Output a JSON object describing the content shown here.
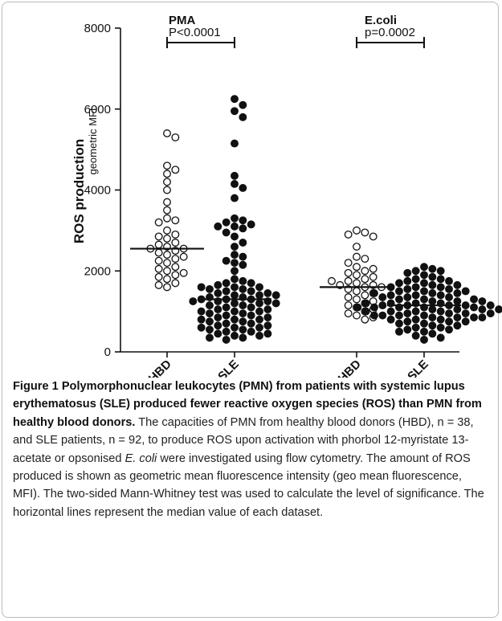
{
  "chart_data": {
    "type": "dot",
    "ylabel": "ROS production",
    "ylabel_sub": "geometric MFI",
    "categories": [
      "HBD",
      "SLE",
      "HBD",
      "SLE"
    ],
    "markers": [
      "open",
      "filled",
      "open",
      "filled"
    ],
    "values": [
      [
        5400,
        5300,
        4600,
        4500,
        4400,
        4200,
        4000,
        3700,
        3500,
        3300,
        3250,
        3200,
        3000,
        2900,
        2850,
        2800,
        2700,
        2650,
        2600,
        2550,
        2550,
        2500,
        2450,
        2400,
        2350,
        2300,
        2250,
        2200,
        2100,
        2050,
        2000,
        1950,
        1900,
        1850,
        1800,
        1700,
        1650,
        1600
      ],
      [
        6250,
        6100,
        5950,
        5800,
        5150,
        4350,
        4150,
        4050,
        3800,
        3300,
        3250,
        3200,
        3150,
        3100,
        3100,
        3050,
        2950,
        2850,
        2700,
        2600,
        2400,
        2350,
        2250,
        2200,
        2150,
        2000,
        1800,
        1750,
        1700,
        1700,
        1650,
        1600,
        1600,
        1550,
        1550,
        1500,
        1500,
        1450,
        1450,
        1400,
        1400,
        1350,
        1350,
        1300,
        1300,
        1300,
        1250,
        1250,
        1200,
        1200,
        1150,
        1150,
        1100,
        1100,
        1050,
        1050,
        1000,
        1000,
        950,
        950,
        900,
        900,
        850,
        850,
        800,
        800,
        750,
        750,
        700,
        700,
        650,
        650,
        600,
        600,
        550,
        550,
        500,
        500,
        450,
        450,
        400,
        400,
        350,
        350,
        300,
        1400,
        1200,
        1000,
        800,
        600,
        1600,
        1250
      ],
      [
        3000,
        2950,
        2900,
        2850,
        2600,
        2350,
        2300,
        2200,
        2100,
        2000,
        1950,
        1900,
        1850,
        1800,
        1750,
        1700,
        1650,
        1650,
        1600,
        1600,
        1550,
        1500,
        1450,
        1400,
        1350,
        1300,
        1250,
        1200,
        1150,
        1100,
        1050,
        1000,
        950,
        900,
        850,
        800,
        2050,
        1750
      ],
      [
        2100,
        2050,
        2000,
        2000,
        1950,
        1900,
        1850,
        1800,
        1800,
        1750,
        1750,
        1700,
        1700,
        1650,
        1650,
        1600,
        1600,
        1550,
        1550,
        1500,
        1500,
        1450,
        1450,
        1400,
        1400,
        1350,
        1350,
        1300,
        1300,
        1250,
        1250,
        1200,
        1200,
        1200,
        1150,
        1150,
        1150,
        1150,
        1100,
        1100,
        1100,
        1100,
        1050,
        1050,
        1050,
        1000,
        1000,
        1000,
        950,
        950,
        950,
        900,
        900,
        900,
        850,
        850,
        850,
        800,
        800,
        800,
        750,
        750,
        700,
        700,
        650,
        650,
        600,
        600,
        550,
        550,
        500,
        500,
        450,
        400,
        350,
        1200,
        1150,
        1100,
        1000,
        900,
        1300,
        1400,
        1250,
        1050,
        950,
        850,
        750,
        1500,
        1600,
        1350,
        1450,
        300
      ]
    ],
    "medians": [
      2550,
      1300,
      1600,
      1150
    ],
    "annotations": [
      {
        "title": "PMA",
        "text": "P<0.0001"
      },
      {
        "title": "E.coli",
        "text": "p=0.0002"
      }
    ],
    "ylim": [
      0,
      8000
    ],
    "yticks": [
      0,
      2000,
      4000,
      6000,
      8000
    ]
  },
  "caption": {
    "label": "Figure 1",
    "title": "Polymorphonuclear leukocytes (PMN) from patients with systemic lupus erythematosus (SLE) produced fewer reactive oxygen species (ROS) than PMN from healthy blood donors.",
    "body_1": "The capacities of PMN from healthy blood donors (HBD), n = 38, and SLE patients, n = 92, to produce ROS upon activation with phorbol 12-myristate 13-acetate or opsonised",
    "body_italic": "E. coli",
    "body_2": "were investigated using flow cytometry. The amount of ROS produced is shown as geometric mean fluorescence intensity (geo mean fluorescence, MFI). The two-sided Mann-Whitney test was used to calculate the level of significance. The horizontal lines represent the median value of each dataset."
  }
}
